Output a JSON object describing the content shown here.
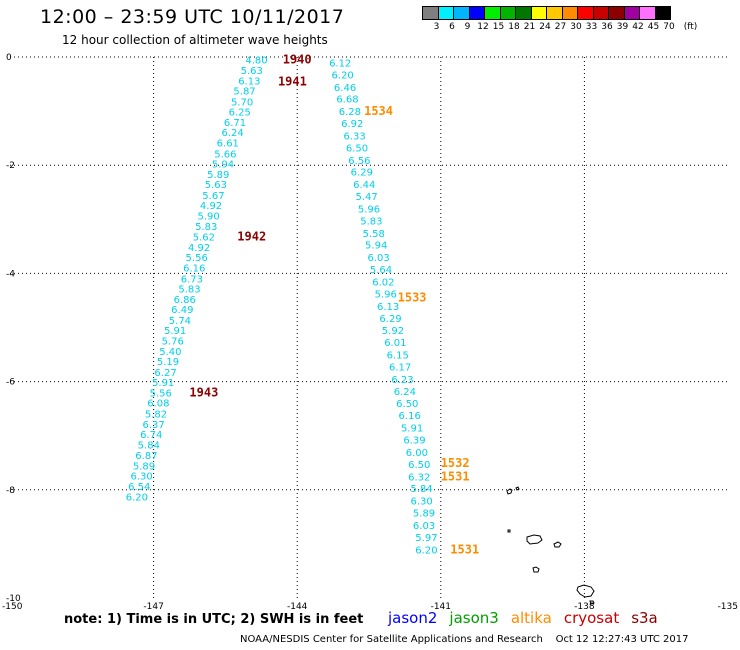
{
  "header": {
    "title": "12:00 – 23:59 UTC 10/11/2017",
    "subtitle": "12 hour collection of altimeter wave heights"
  },
  "colorbar": {
    "colors": [
      "#7f7f7f",
      "#00f0ff",
      "#00b4ff",
      "#0000ff",
      "#00f000",
      "#00b400",
      "#007800",
      "#ffff00",
      "#ffc800",
      "#ff8c00",
      "#ff0000",
      "#c80000",
      "#8c0000",
      "#a000a0",
      "#ff70ff",
      "#000000"
    ],
    "labels": [
      "3",
      "6",
      "9",
      "12",
      "15",
      "18",
      "21",
      "24",
      "27",
      "30",
      "33",
      "36",
      "39",
      "42",
      "45",
      "70",
      "(ft)"
    ]
  },
  "footer": {
    "note": "note: 1) Time is in UTC; 2) SWH is in feet",
    "credit": "NOAA/NESDIS Center for Satellite Applications and Research    Oct 12 12:27:43 UTC 2017"
  },
  "legend": [
    {
      "label": "jason2",
      "color": "#0000ff"
    },
    {
      "label": "jason3",
      "color": "#00a000"
    },
    {
      "label": "altika",
      "color": "#ff8c00"
    },
    {
      "label": "cryosat",
      "color": "#c80000"
    },
    {
      "label": "s3a",
      "color": "#8c0000"
    }
  ],
  "chart_data": {
    "type": "scatter",
    "xlim": [
      -150,
      -135
    ],
    "ylim": [
      -10,
      0
    ],
    "x_ticks": [
      "-150",
      "-147",
      "-144",
      "-141",
      "-138",
      "-135"
    ],
    "y_ticks": [
      "0",
      "-2",
      "-4",
      "-6",
      "-8",
      "-10"
    ],
    "grid": true,
    "swh_color": "#00d0ea",
    "series": [
      {
        "name": "s3a",
        "color": "#8c0000",
        "points": [
          {
            "x": -144.85,
            "y": -0.05,
            "v": "4.80"
          },
          {
            "x": -144.95,
            "y": -0.24,
            "v": "5.63"
          },
          {
            "x": -145.0,
            "y": -0.43,
            "v": "6.13"
          },
          {
            "x": -145.1,
            "y": -0.62,
            "v": "5.87"
          },
          {
            "x": -145.15,
            "y": -0.82,
            "v": "5.70"
          },
          {
            "x": -145.2,
            "y": -1.01,
            "v": "6.25"
          },
          {
            "x": -145.3,
            "y": -1.2,
            "v": "6.71"
          },
          {
            "x": -145.35,
            "y": -1.39,
            "v": "6.24"
          },
          {
            "x": -145.45,
            "y": -1.58,
            "v": "6.61"
          },
          {
            "x": -145.5,
            "y": -1.78,
            "v": "5.66"
          },
          {
            "x": -145.55,
            "y": -1.97,
            "v": "5.94"
          },
          {
            "x": -145.65,
            "y": -2.16,
            "v": "5.89"
          },
          {
            "x": -145.7,
            "y": -2.35,
            "v": "5.63"
          },
          {
            "x": -145.75,
            "y": -2.55,
            "v": "5.67"
          },
          {
            "x": -145.8,
            "y": -2.74,
            "v": "4.92"
          },
          {
            "x": -145.85,
            "y": -2.93,
            "v": "5.90"
          },
          {
            "x": -145.9,
            "y": -3.12,
            "v": "5.83"
          },
          {
            "x": -145.95,
            "y": -3.32,
            "v": "5.62"
          },
          {
            "x": -146.05,
            "y": -3.51,
            "v": "4.92"
          },
          {
            "x": -146.1,
            "y": -3.7,
            "v": "5.56"
          },
          {
            "x": -146.15,
            "y": -3.89,
            "v": "6.16"
          },
          {
            "x": -146.2,
            "y": -4.09,
            "v": "6.73"
          },
          {
            "x": -146.25,
            "y": -4.28,
            "v": "5.83"
          },
          {
            "x": -146.35,
            "y": -4.47,
            "v": "6.86"
          },
          {
            "x": -146.4,
            "y": -4.66,
            "v": "6.49"
          },
          {
            "x": -146.45,
            "y": -4.86,
            "v": "5.74"
          },
          {
            "x": -146.55,
            "y": -5.05,
            "v": "5.91"
          },
          {
            "x": -146.6,
            "y": -5.24,
            "v": "5.76"
          },
          {
            "x": -146.65,
            "y": -5.43,
            "v": "5.40"
          },
          {
            "x": -146.7,
            "y": -5.62,
            "v": "5.19"
          },
          {
            "x": -146.75,
            "y": -5.82,
            "v": "6.27"
          },
          {
            "x": -146.8,
            "y": -6.01,
            "v": "5.91"
          },
          {
            "x": -146.85,
            "y": -6.2,
            "v": "5.56"
          },
          {
            "x": -146.9,
            "y": -6.39,
            "v": "6.08"
          },
          {
            "x": -146.95,
            "y": -6.59,
            "v": "5.82"
          },
          {
            "x": -147.0,
            "y": -6.78,
            "v": "6.37"
          },
          {
            "x": -147.05,
            "y": -6.97,
            "v": "6.74"
          },
          {
            "x": -147.1,
            "y": -7.16,
            "v": "5.84"
          },
          {
            "x": -147.15,
            "y": -7.36,
            "v": "6.87"
          },
          {
            "x": -147.2,
            "y": -7.55,
            "v": "5.89"
          },
          {
            "x": -147.25,
            "y": -7.74,
            "v": "6.30"
          },
          {
            "x": -147.3,
            "y": -7.93,
            "v": "6.54"
          },
          {
            "x": -147.35,
            "y": -8.12,
            "v": "6.20"
          }
        ],
        "times": [
          {
            "x": -144.0,
            "y": -0.05,
            "t": "1940"
          },
          {
            "x": -144.1,
            "y": -0.45,
            "t": "1941"
          },
          {
            "x": -144.95,
            "y": -3.32,
            "t": "1942"
          },
          {
            "x": -145.95,
            "y": -6.2,
            "t": "1943"
          }
        ]
      },
      {
        "name": "altika",
        "color": "#ff8c00",
        "points": [
          {
            "x": -143.1,
            "y": -0.1,
            "v": "6.12"
          },
          {
            "x": -143.05,
            "y": -0.32,
            "v": "6.20"
          },
          {
            "x": -143.0,
            "y": -0.55,
            "v": "6.46"
          },
          {
            "x": -142.95,
            "y": -0.77,
            "v": "6.68"
          },
          {
            "x": -142.9,
            "y": -1.0,
            "v": "6.28"
          },
          {
            "x": -142.85,
            "y": -1.22,
            "v": "6.92"
          },
          {
            "x": -142.8,
            "y": -1.45,
            "v": "6.33"
          },
          {
            "x": -142.75,
            "y": -1.67,
            "v": "6.50"
          },
          {
            "x": -142.7,
            "y": -1.9,
            "v": "6.56"
          },
          {
            "x": -142.65,
            "y": -2.12,
            "v": "6.29"
          },
          {
            "x": -142.6,
            "y": -2.35,
            "v": "6.44"
          },
          {
            "x": -142.55,
            "y": -2.57,
            "v": "5.47"
          },
          {
            "x": -142.5,
            "y": -2.8,
            "v": "5.96"
          },
          {
            "x": -142.45,
            "y": -3.02,
            "v": "5.83"
          },
          {
            "x": -142.4,
            "y": -3.25,
            "v": "5.58"
          },
          {
            "x": -142.35,
            "y": -3.47,
            "v": "5.94"
          },
          {
            "x": -142.3,
            "y": -3.7,
            "v": "6.03"
          },
          {
            "x": -142.25,
            "y": -3.92,
            "v": "5.64"
          },
          {
            "x": -142.2,
            "y": -4.15,
            "v": "6.02"
          },
          {
            "x": -142.15,
            "y": -4.37,
            "v": "5.96"
          },
          {
            "x": -142.1,
            "y": -4.6,
            "v": "6.13"
          },
          {
            "x": -142.05,
            "y": -4.82,
            "v": "6.29"
          },
          {
            "x": -142.0,
            "y": -5.05,
            "v": "5.92"
          },
          {
            "x": -141.95,
            "y": -5.27,
            "v": "6.01"
          },
          {
            "x": -141.9,
            "y": -5.5,
            "v": "6.15"
          },
          {
            "x": -141.85,
            "y": -5.72,
            "v": "6.17"
          },
          {
            "x": -141.8,
            "y": -5.95,
            "v": "6.23"
          },
          {
            "x": -141.75,
            "y": -6.17,
            "v": "6.24"
          },
          {
            "x": -141.7,
            "y": -6.4,
            "v": "6.50"
          },
          {
            "x": -141.65,
            "y": -6.62,
            "v": "6.16"
          },
          {
            "x": -141.6,
            "y": -6.85,
            "v": "5.91"
          },
          {
            "x": -141.55,
            "y": -7.07,
            "v": "6.39"
          },
          {
            "x": -141.5,
            "y": -7.3,
            "v": "6.00"
          },
          {
            "x": -141.45,
            "y": -7.52,
            "v": "6.50"
          },
          {
            "x": -141.45,
            "y": -7.75,
            "v": "6.32"
          },
          {
            "x": -141.4,
            "y": -7.97,
            "v": "5.84"
          },
          {
            "x": -141.4,
            "y": -8.2,
            "v": "6.30"
          },
          {
            "x": -141.35,
            "y": -8.42,
            "v": "5.89"
          },
          {
            "x": -141.35,
            "y": -8.65,
            "v": "6.03"
          },
          {
            "x": -141.3,
            "y": -8.87,
            "v": "5.97"
          },
          {
            "x": -141.3,
            "y": -9.1,
            "v": "6.20"
          }
        ],
        "times": [
          {
            "x": -142.3,
            "y": -1.0,
            "t": "1534"
          },
          {
            "x": -141.6,
            "y": -4.45,
            "t": "1533"
          },
          {
            "x": -140.7,
            "y": -7.5,
            "t": "1532"
          },
          {
            "x": -140.7,
            "y": -7.75,
            "t": "1531"
          },
          {
            "x": -140.5,
            "y": -9.1,
            "t": "1531"
          }
        ]
      }
    ]
  }
}
